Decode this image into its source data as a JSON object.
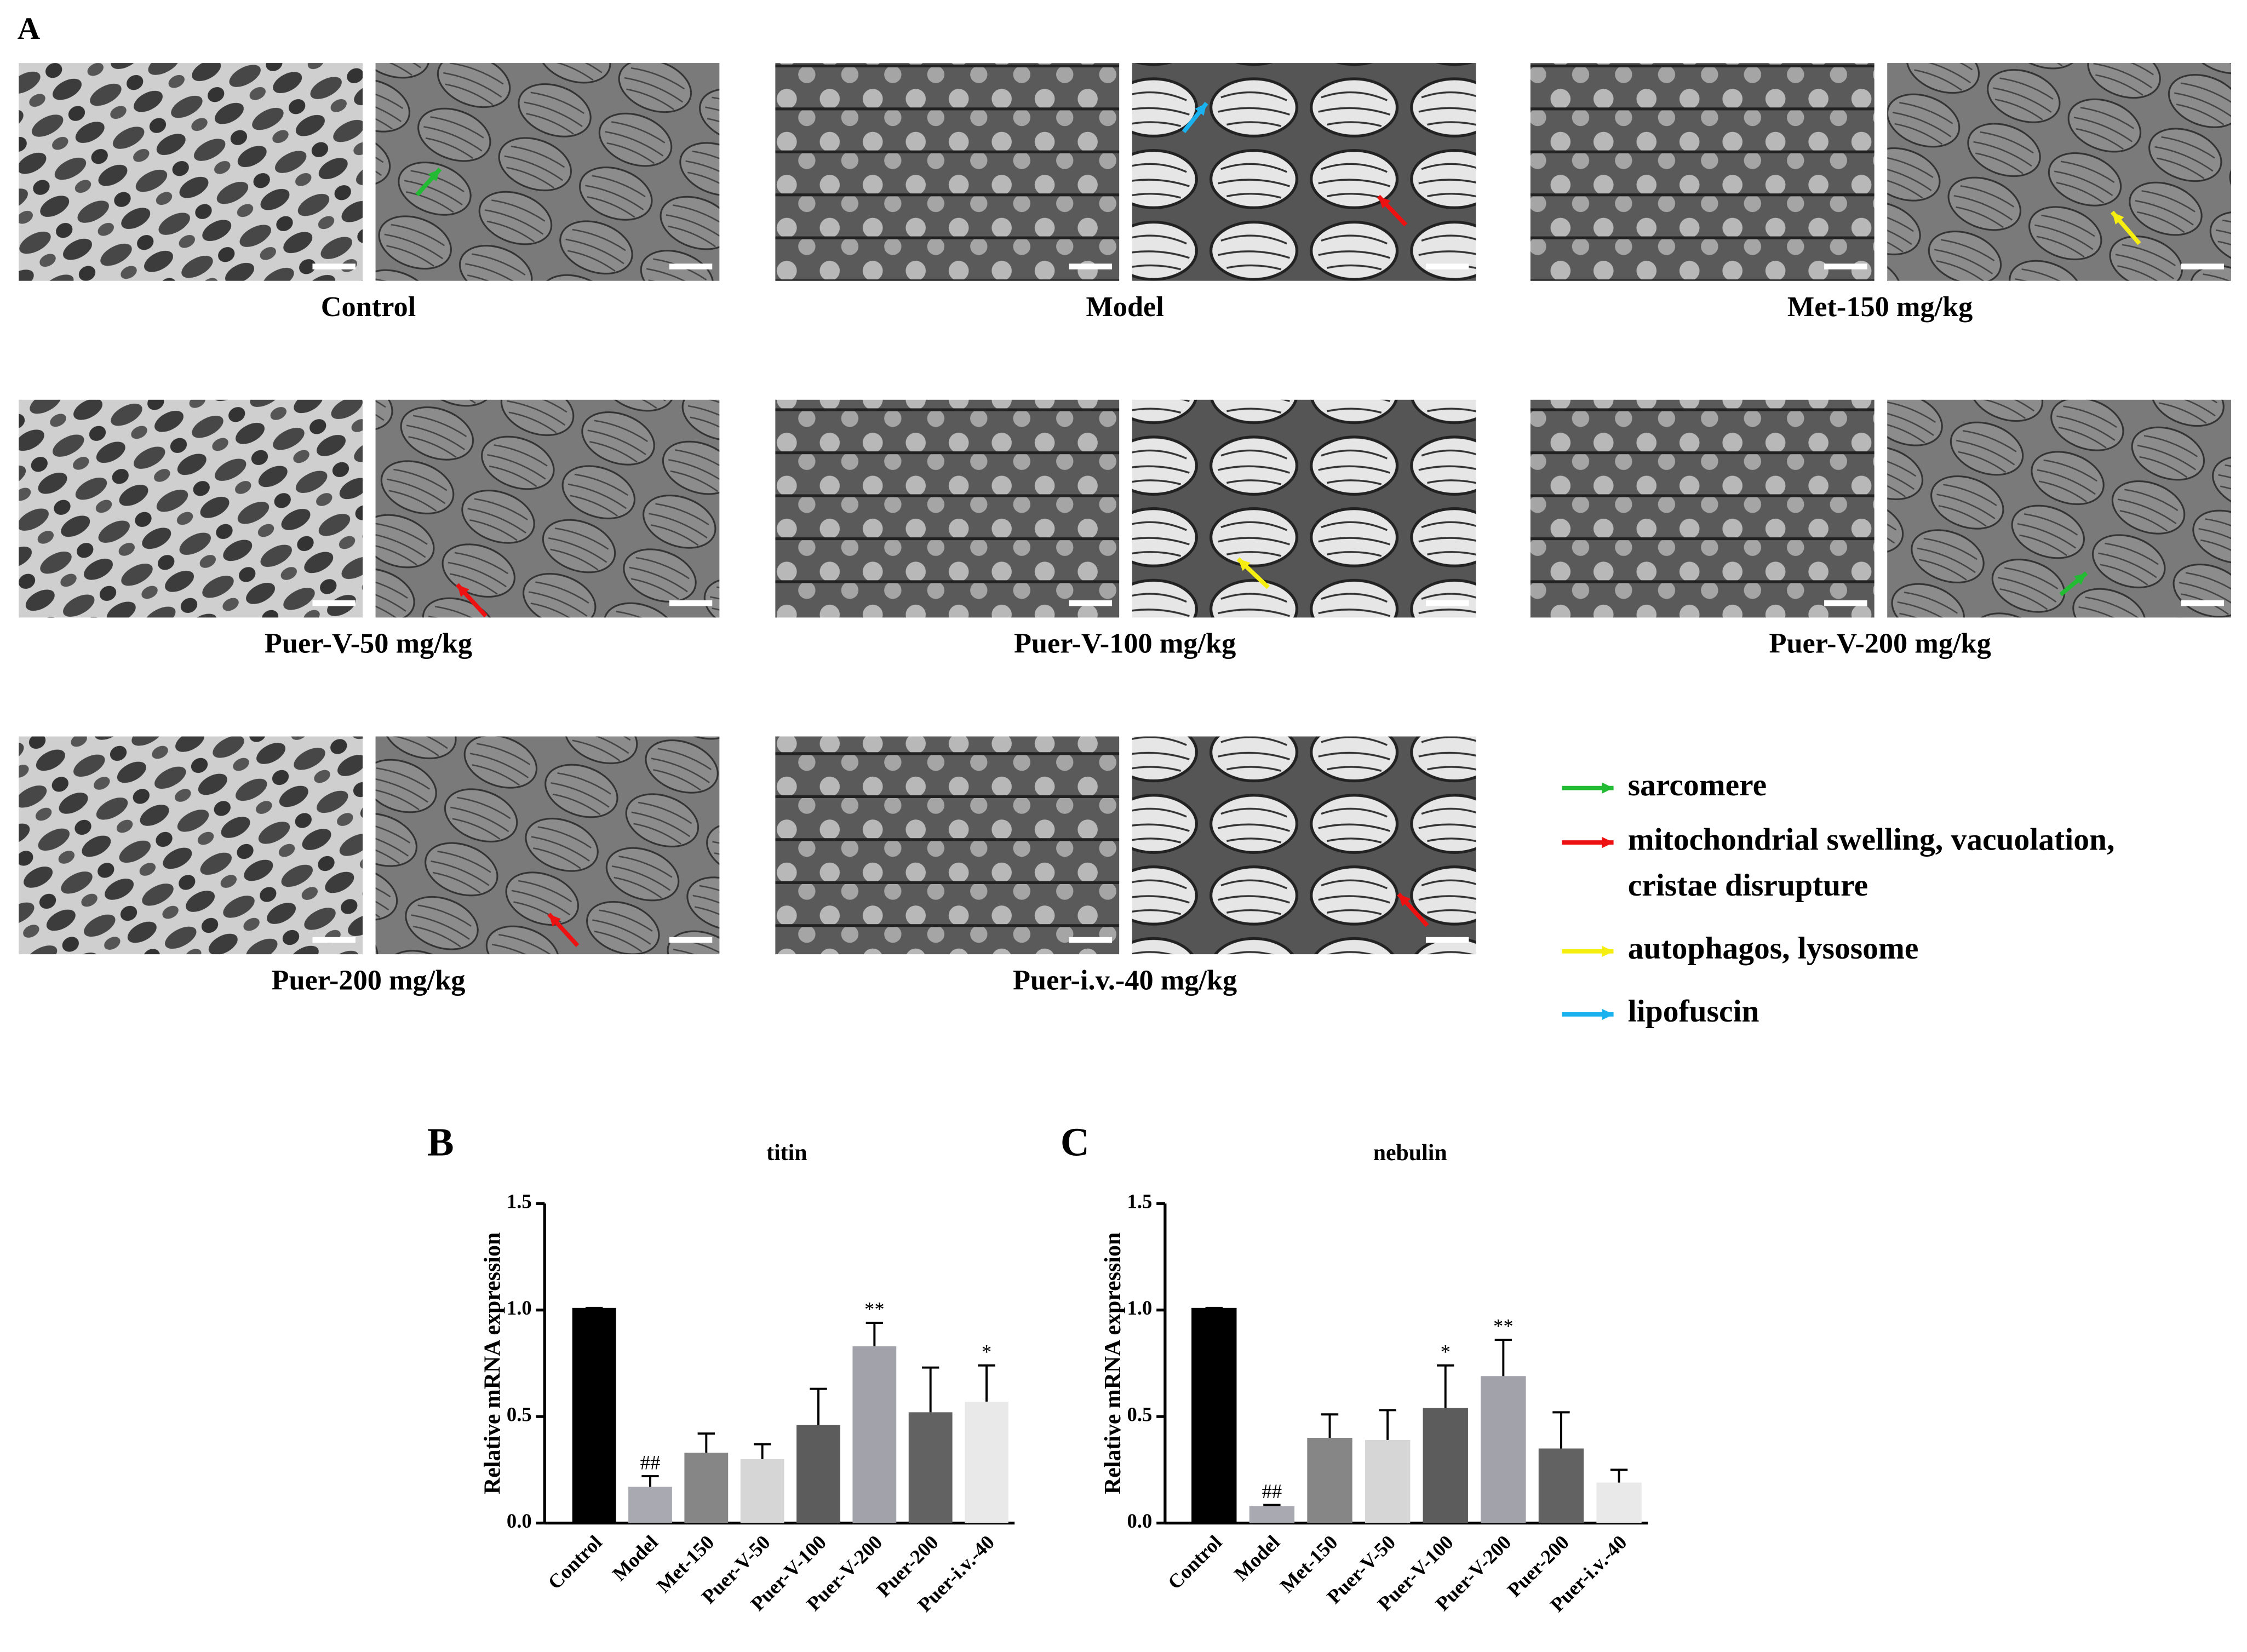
{
  "panel_a": {
    "label": "A",
    "groups": [
      "Control",
      "Model",
      "Met-150 mg/kg",
      "Puer-V-50 mg/kg",
      "Puer-V-100 mg/kg",
      "Puer-V-200 mg/kg",
      "Puer-200 mg/kg",
      "Puer-i.v.-40 mg/kg"
    ],
    "legend": [
      {
        "color": "#22bb33",
        "lines": [
          "sarcomere"
        ]
      },
      {
        "color": "#ee1111",
        "lines": [
          "mitochondrial swelling, vacuolation,",
          "cristae disrupture"
        ]
      },
      {
        "color": "#f5ee10",
        "lines": [
          "autophagos, lysosome"
        ]
      },
      {
        "color": "#1ab2ee",
        "lines": [
          "lipofuscin"
        ]
      }
    ]
  },
  "chart_data": [
    {
      "type": "bar",
      "panel_label": "B",
      "title": "titin",
      "ylabel": "Relative mRNA expression",
      "categories": [
        "Control",
        "Model",
        "Met-150",
        "Puer-V-50",
        "Puer-V-100",
        "Puer-V-200",
        "Puer-200",
        "Puer-i.v.-40"
      ],
      "values": [
        1.01,
        0.17,
        0.33,
        0.3,
        0.46,
        0.83,
        0.52,
        0.57
      ],
      "errors": [
        0,
        0.05,
        0.09,
        0.07,
        0.17,
        0.11,
        0.21,
        0.17
      ],
      "annotations": [
        null,
        "##",
        null,
        null,
        null,
        "**",
        null,
        "*"
      ],
      "colors": [
        "#000000",
        "#a9a9b1",
        "#868686",
        "#d6d6d6",
        "#5c5c5c",
        "#a2a2aa",
        "#626262",
        "#e9e9e9"
      ],
      "ylim": [
        0,
        1.5
      ],
      "yticks": [
        {
          "value": 0,
          "label": "0.0"
        },
        {
          "value": 0.5,
          "label": "0.5"
        },
        {
          "value": 1,
          "label": "1.0"
        },
        {
          "value": 1.5,
          "label": "1.5"
        }
      ]
    },
    {
      "type": "bar",
      "panel_label": "C",
      "title": "nebulin",
      "ylabel": "Relative mRNA expression",
      "categories": [
        "Control",
        "Model",
        "Met-150",
        "Puer-V-50",
        "Puer-V-100",
        "Puer-V-200",
        "Puer-200",
        "Puer-i.v.-40"
      ],
      "values": [
        1.01,
        0.08,
        0.4,
        0.39,
        0.54,
        0.69,
        0.35,
        0.19
      ],
      "errors": [
        0,
        0.005,
        0.11,
        0.14,
        0.2,
        0.17,
        0.17,
        0.06
      ],
      "annotations": [
        null,
        "##",
        null,
        null,
        "*",
        "**",
        null,
        null
      ],
      "colors": [
        "#000000",
        "#a9a9b1",
        "#868686",
        "#d6d6d6",
        "#5c5c5c",
        "#a2a2aa",
        "#626262",
        "#e9e9e9"
      ],
      "ylim": [
        0,
        1.5
      ],
      "yticks": [
        {
          "value": 0,
          "label": "0.0"
        },
        {
          "value": 0.5,
          "label": "0.5"
        },
        {
          "value": 1,
          "label": "1.0"
        },
        {
          "value": 1.5,
          "label": "1.5"
        }
      ]
    }
  ]
}
